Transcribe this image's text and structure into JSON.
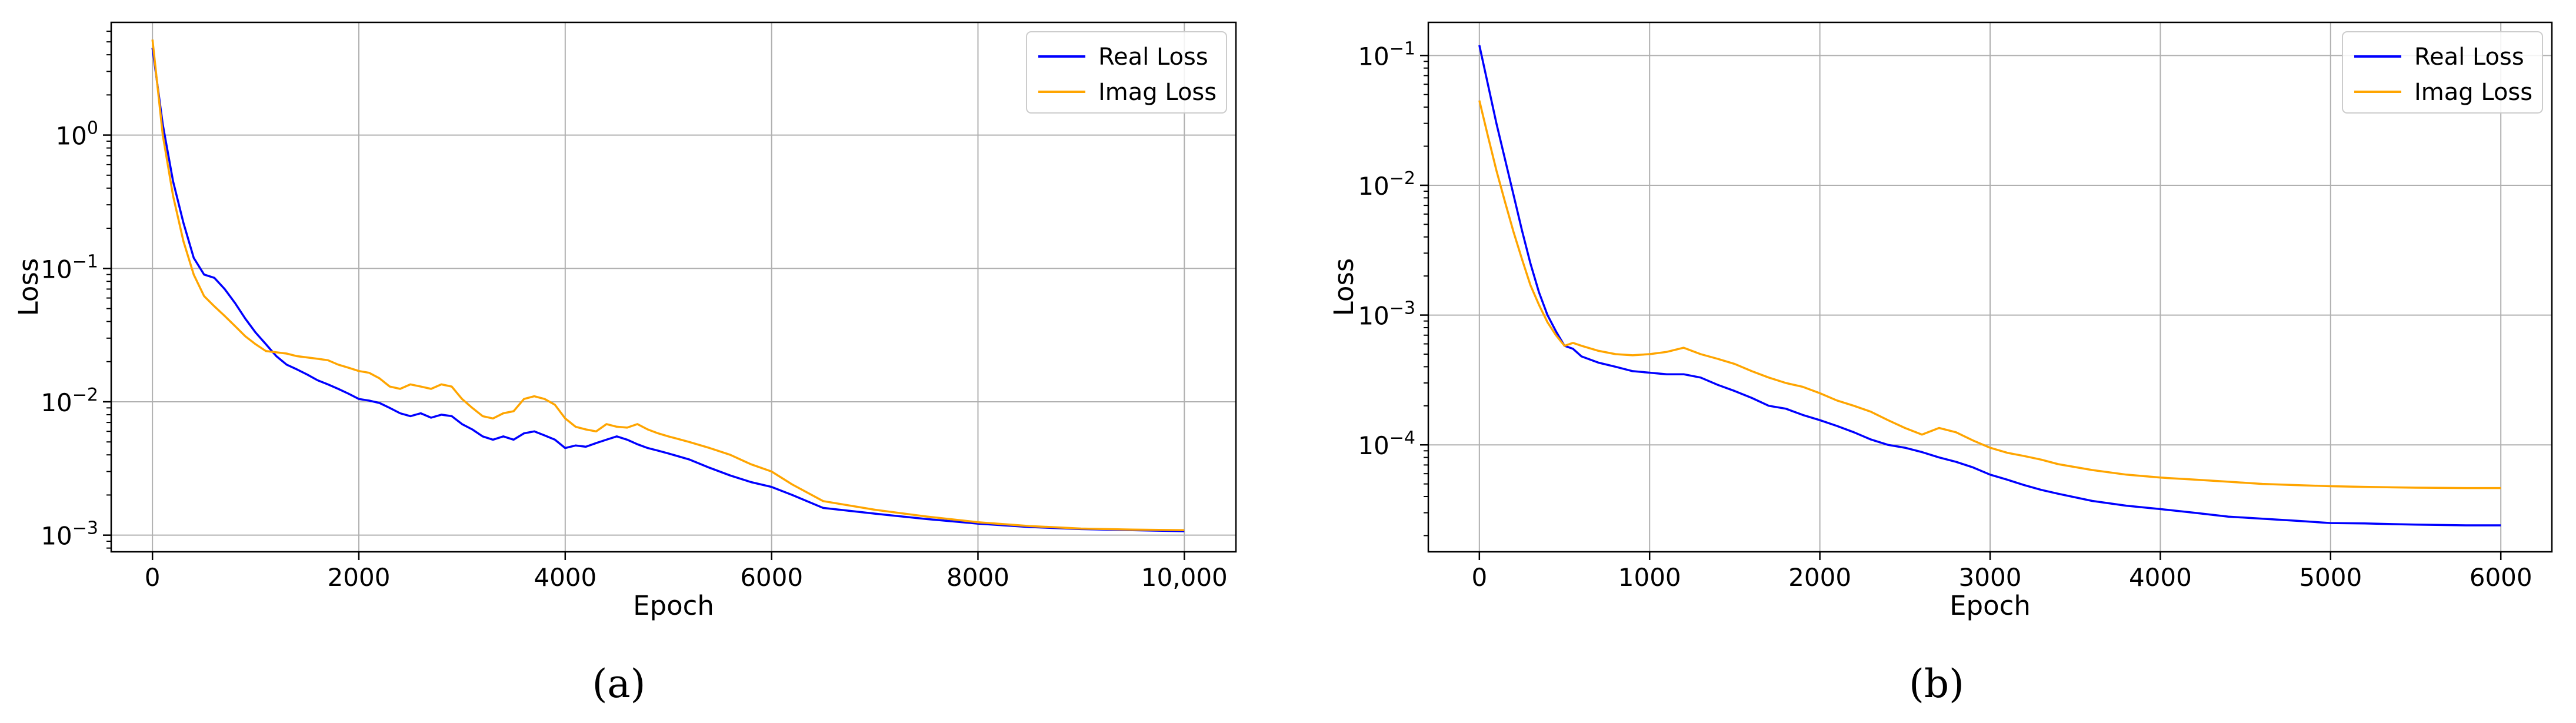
{
  "chart_data": [
    {
      "type": "line",
      "panel_label": "(a)",
      "xlabel": "Epoch",
      "ylabel": "Loss",
      "yscale": "log",
      "xlim": [
        -400,
        10500
      ],
      "ylim": [
        0.00075,
        7
      ],
      "xticks": [
        {
          "value": 0,
          "label": "0"
        },
        {
          "value": 2000,
          "label": "2000"
        },
        {
          "value": 4000,
          "label": "4000"
        },
        {
          "value": 6000,
          "label": "6000"
        },
        {
          "value": 8000,
          "label": "8000"
        },
        {
          "value": 10000,
          "label": "10,000"
        }
      ],
      "yticks": [
        {
          "value": 0.001,
          "base": "10",
          "exp": "−3"
        },
        {
          "value": 0.01,
          "base": "10",
          "exp": "−2"
        },
        {
          "value": 0.1,
          "base": "10",
          "exp": "−1"
        },
        {
          "value": 1,
          "base": "10",
          "exp": "0"
        }
      ],
      "grid": true,
      "legend_position": "top-right",
      "series": [
        {
          "name": "Real Loss",
          "color": "#0000ff",
          "x": [
            0,
            100,
            200,
            300,
            400,
            500,
            600,
            700,
            800,
            900,
            1000,
            1100,
            1200,
            1300,
            1400,
            1500,
            1600,
            1700,
            1800,
            1900,
            2000,
            2100,
            2200,
            2300,
            2400,
            2500,
            2600,
            2700,
            2800,
            2900,
            3000,
            3100,
            3200,
            3300,
            3400,
            3500,
            3600,
            3700,
            3800,
            3900,
            4000,
            4100,
            4200,
            4300,
            4400,
            4500,
            4600,
            4700,
            4800,
            4900,
            5000,
            5200,
            5400,
            5600,
            5800,
            6000,
            6200,
            6500,
            7000,
            7500,
            8000,
            8500,
            9000,
            9500,
            10000
          ],
          "y": [
            4.5,
            1.2,
            0.45,
            0.22,
            0.12,
            0.09,
            0.085,
            0.07,
            0.055,
            0.042,
            0.033,
            0.027,
            0.022,
            0.019,
            0.0175,
            0.016,
            0.0145,
            0.0135,
            0.0125,
            0.0115,
            0.0105,
            0.0102,
            0.0098,
            0.009,
            0.0082,
            0.0078,
            0.0082,
            0.0076,
            0.008,
            0.0078,
            0.0068,
            0.0062,
            0.0055,
            0.0052,
            0.0055,
            0.0052,
            0.0058,
            0.006,
            0.0056,
            0.0052,
            0.0045,
            0.0047,
            0.0046,
            0.0049,
            0.0052,
            0.0055,
            0.0052,
            0.0048,
            0.0045,
            0.0043,
            0.0041,
            0.0037,
            0.0032,
            0.0028,
            0.0025,
            0.0023,
            0.002,
            0.0016,
            0.00145,
            0.00132,
            0.00122,
            0.00115,
            0.00111,
            0.00109,
            0.00107
          ]
        },
        {
          "name": "Imag Loss",
          "color": "#ffa500",
          "x": [
            0,
            100,
            200,
            300,
            400,
            500,
            600,
            700,
            800,
            900,
            1000,
            1100,
            1200,
            1300,
            1400,
            1500,
            1600,
            1700,
            1800,
            1900,
            2000,
            2100,
            2200,
            2300,
            2400,
            2500,
            2600,
            2700,
            2800,
            2900,
            3000,
            3100,
            3200,
            3300,
            3400,
            3500,
            3600,
            3700,
            3800,
            3900,
            4000,
            4100,
            4200,
            4300,
            4400,
            4500,
            4600,
            4700,
            4800,
            4900,
            5000,
            5200,
            5400,
            5600,
            5800,
            6000,
            6200,
            6500,
            7000,
            7500,
            8000,
            8500,
            9000,
            9500,
            10000
          ],
          "y": [
            5.2,
            1.0,
            0.35,
            0.16,
            0.09,
            0.062,
            0.052,
            0.044,
            0.037,
            0.031,
            0.027,
            0.024,
            0.0235,
            0.023,
            0.022,
            0.0215,
            0.021,
            0.0205,
            0.019,
            0.018,
            0.017,
            0.0165,
            0.015,
            0.013,
            0.0125,
            0.0135,
            0.013,
            0.0125,
            0.0135,
            0.013,
            0.0105,
            0.009,
            0.0078,
            0.0075,
            0.0082,
            0.0085,
            0.0105,
            0.011,
            0.0105,
            0.0095,
            0.0075,
            0.0065,
            0.0062,
            0.006,
            0.0068,
            0.0065,
            0.0064,
            0.0068,
            0.0062,
            0.0058,
            0.0055,
            0.005,
            0.0045,
            0.004,
            0.0034,
            0.003,
            0.0024,
            0.0018,
            0.00155,
            0.00138,
            0.00125,
            0.00117,
            0.00112,
            0.0011,
            0.00109
          ]
        }
      ]
    },
    {
      "type": "line",
      "panel_label": "(b)",
      "xlabel": "Epoch",
      "ylabel": "Loss",
      "yscale": "log",
      "xlim": [
        -300,
        6300
      ],
      "ylim": [
        1.5e-05,
        0.18
      ],
      "xticks": [
        {
          "value": 0,
          "label": "0"
        },
        {
          "value": 1000,
          "label": "1000"
        },
        {
          "value": 2000,
          "label": "2000"
        },
        {
          "value": 3000,
          "label": "3000"
        },
        {
          "value": 4000,
          "label": "4000"
        },
        {
          "value": 5000,
          "label": "5000"
        },
        {
          "value": 6000,
          "label": "6000"
        }
      ],
      "yticks": [
        {
          "value": 0.0001,
          "base": "10",
          "exp": "−4"
        },
        {
          "value": 0.001,
          "base": "10",
          "exp": "−3"
        },
        {
          "value": 0.01,
          "base": "10",
          "exp": "−2"
        },
        {
          "value": 0.1,
          "base": "10",
          "exp": "−1"
        }
      ],
      "grid": true,
      "legend_position": "top-right",
      "series": [
        {
          "name": "Real Loss",
          "color": "#0000ff",
          "x": [
            0,
            50,
            100,
            150,
            200,
            250,
            300,
            350,
            400,
            450,
            500,
            550,
            600,
            700,
            800,
            900,
            1000,
            1100,
            1200,
            1300,
            1400,
            1500,
            1600,
            1700,
            1800,
            1900,
            2000,
            2100,
            2200,
            2300,
            2400,
            2500,
            2600,
            2700,
            2800,
            2900,
            3000,
            3100,
            3200,
            3300,
            3400,
            3600,
            3800,
            4000,
            4200,
            4400,
            4600,
            4800,
            5000,
            5200,
            5500,
            5800,
            6000
          ],
          "y": [
            0.12,
            0.06,
            0.03,
            0.016,
            0.0085,
            0.0045,
            0.0025,
            0.0015,
            0.001,
            0.00075,
            0.00058,
            0.00055,
            0.00048,
            0.00043,
            0.0004,
            0.00037,
            0.00036,
            0.00035,
            0.00035,
            0.00033,
            0.00029,
            0.00026,
            0.00023,
            0.0002,
            0.00019,
            0.00017,
            0.000155,
            0.00014,
            0.000125,
            0.00011,
            0.0001,
            9.5e-05,
            8.8e-05,
            8e-05,
            7.4e-05,
            6.7e-05,
            5.9e-05,
            5.4e-05,
            4.9e-05,
            4.5e-05,
            4.2e-05,
            3.7e-05,
            3.4e-05,
            3.2e-05,
            3e-05,
            2.8e-05,
            2.7e-05,
            2.6e-05,
            2.5e-05,
            2.48e-05,
            2.43e-05,
            2.4e-05,
            2.4e-05
          ]
        },
        {
          "name": "Imag Loss",
          "color": "#ffa500",
          "x": [
            0,
            50,
            100,
            150,
            200,
            250,
            300,
            350,
            400,
            450,
            500,
            550,
            600,
            700,
            800,
            900,
            1000,
            1100,
            1200,
            1300,
            1400,
            1500,
            1600,
            1700,
            1800,
            1900,
            2000,
            2100,
            2200,
            2300,
            2400,
            2500,
            2600,
            2700,
            2800,
            2900,
            3000,
            3100,
            3200,
            3300,
            3400,
            3600,
            3800,
            4000,
            4200,
            4400,
            4600,
            4800,
            5000,
            5200,
            5500,
            5800,
            6000
          ],
          "y": [
            0.045,
            0.024,
            0.013,
            0.0075,
            0.0044,
            0.0027,
            0.0017,
            0.0012,
            0.00088,
            0.0007,
            0.00058,
            0.00061,
            0.00058,
            0.00053,
            0.0005,
            0.00049,
            0.0005,
            0.00052,
            0.00056,
            0.0005,
            0.00046,
            0.00042,
            0.00037,
            0.00033,
            0.0003,
            0.00028,
            0.00025,
            0.00022,
            0.0002,
            0.00018,
            0.000155,
            0.000135,
            0.00012,
            0.000135,
            0.000125,
            0.000108,
            9.5e-05,
            8.7e-05,
            8.2e-05,
            7.7e-05,
            7.1e-05,
            6.4e-05,
            5.9e-05,
            5.6e-05,
            5.4e-05,
            5.2e-05,
            5e-05,
            4.9e-05,
            4.8e-05,
            4.75e-05,
            4.68e-05,
            4.65e-05,
            4.65e-05
          ]
        }
      ]
    }
  ]
}
